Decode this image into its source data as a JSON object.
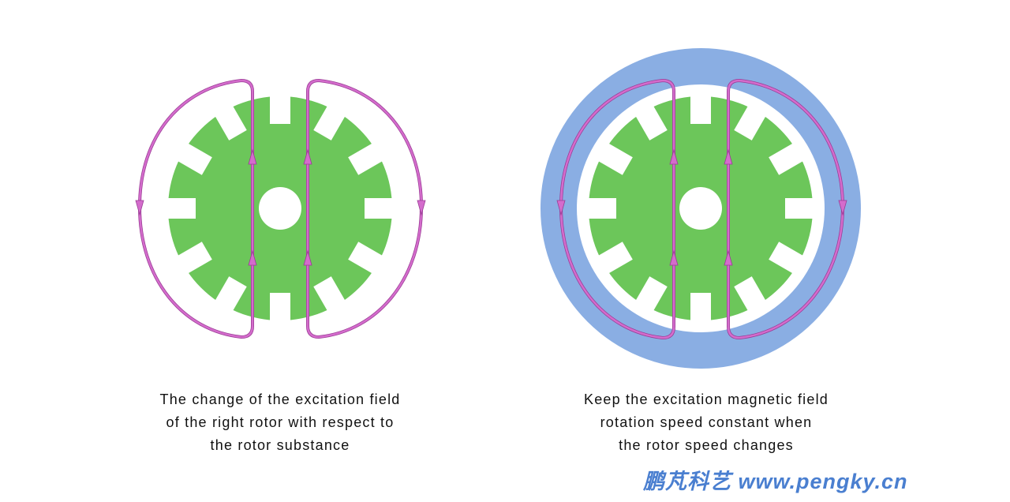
{
  "colors": {
    "rotor": "#6cc65a",
    "stator": "#8aaee3",
    "field_line": "#d46ccc",
    "watermark": "#4a7fd0"
  },
  "left_figure": {
    "caption": [
      "The change of the excitation field",
      "of the right rotor with respect to",
      "the rotor substance"
    ]
  },
  "right_figure": {
    "caption": [
      "Keep the excitation magnetic field",
      "rotation speed constant when",
      "the rotor speed changes"
    ]
  },
  "rotor": {
    "slot_count": 12
  },
  "watermark": "鹏芃科艺 www.pengky.cn"
}
